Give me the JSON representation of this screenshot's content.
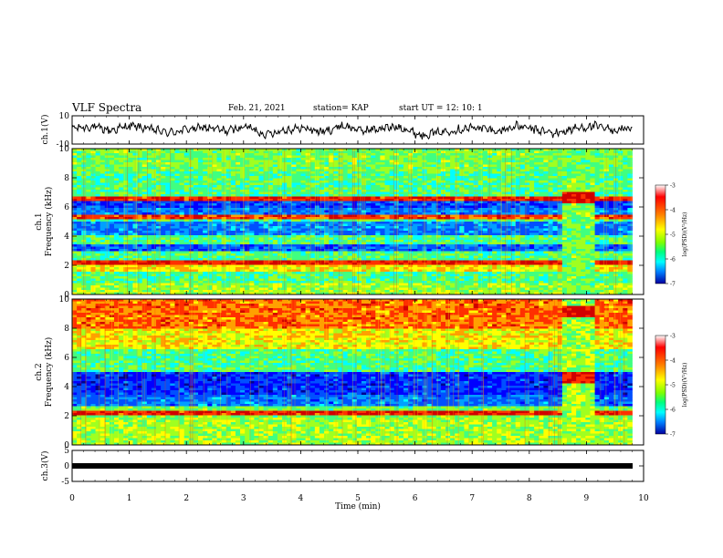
{
  "header": {
    "title": "VLF Spectra",
    "date": "Feb. 21, 2021",
    "station": "station= KAP",
    "start": "start  UT =   12: 10: 1"
  },
  "chart_data": [
    {
      "type": "line",
      "panel": "ch1-waveform",
      "ylabel": "ch.1(V)",
      "ylim": [
        -10,
        10
      ],
      "yticks": [
        "10",
        "-10"
      ],
      "xlim": [
        0,
        10
      ],
      "series_color": "#000000",
      "y_sample": [
        2.0,
        3.1,
        -0.5,
        4.2,
        1.0,
        -3.0,
        0.8,
        2.5,
        -1.2,
        3.8,
        -4.5,
        0.2,
        1.9,
        -2.2,
        4.6,
        -0.8,
        1.4,
        3.3,
        -5.1,
        -2.4,
        0.5,
        2.7,
        -1.6,
        3.9,
        0.1,
        -3.7,
        1.2,
        4.0,
        -0.3,
        2.2
      ]
    },
    {
      "type": "heatmap",
      "panel": "ch1-spectrogram",
      "ylabel": "ch.1 Frequency (kHz)",
      "ylim": [
        0,
        10
      ],
      "yticks": [
        "0",
        "2",
        "4",
        "6",
        "8",
        "10"
      ],
      "xlim": [
        0,
        10
      ],
      "colorbar": {
        "label": "log(PSD)(V²/Hz)",
        "range": [
          -7,
          -3
        ],
        "ticks": [
          "-3",
          "-4",
          "-5",
          "-6",
          "-7"
        ]
      },
      "notes_bands_khz": [
        6.5,
        5.3,
        2.3,
        0.5
      ],
      "gap_segment_min": [
        8.55,
        9.15
      ]
    },
    {
      "type": "heatmap",
      "panel": "ch2-spectrogram",
      "ylabel": "ch.2 Frequency (kHz)",
      "ylim": [
        0,
        10
      ],
      "yticks": [
        "0",
        "2",
        "4",
        "6",
        "8",
        "10"
      ],
      "xlim": [
        0,
        10
      ],
      "colorbar": {
        "label": "log(PSD)(V²/Hz)",
        "range": [
          -7,
          -3
        ],
        "ticks": [
          "-3",
          "-4",
          "-5",
          "-6",
          "-7"
        ]
      },
      "gap_segment_min": [
        8.55,
        9.15
      ]
    },
    {
      "type": "line",
      "panel": "ch3-waveform",
      "ylabel": "ch.3(V)",
      "ylim": [
        -5,
        5
      ],
      "yticks": [
        "5",
        "0",
        "-5"
      ],
      "xlim": [
        0,
        10
      ],
      "y_sample": [
        -0.6,
        -0.6,
        -0.6,
        -0.6
      ]
    }
  ],
  "xaxis": {
    "label": "Time (min)",
    "ticks": [
      "0",
      "1",
      "2",
      "3",
      "4",
      "5",
      "6",
      "7",
      "8",
      "9",
      "10"
    ]
  },
  "colors": {
    "scale": [
      "#00008f",
      "#0000ff",
      "#0080ff",
      "#00ffff",
      "#80ff80",
      "#ffff00",
      "#ff8000",
      "#ff0000",
      "#800000"
    ]
  }
}
